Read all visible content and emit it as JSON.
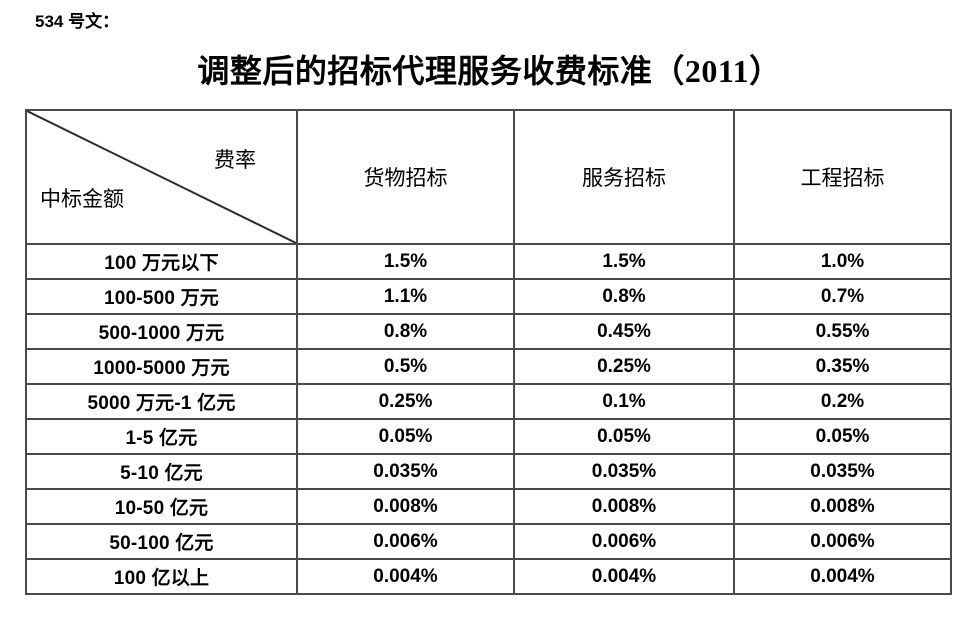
{
  "page": {
    "doc_label": "534 号文：",
    "title": "调整后的招标代理服务收费标准（2011）",
    "background_color": "#ffffff",
    "text_color": "#000000",
    "border_color": "#4a4a4a"
  },
  "table": {
    "corner": {
      "top_right_label": "费率",
      "bottom_left_label": "中标金额"
    },
    "columns": [
      "货物招标",
      "服务招标",
      "工程招标"
    ],
    "rows": [
      {
        "label": "100 万元以下",
        "values": [
          "1.5%",
          "1.5%",
          "1.0%"
        ]
      },
      {
        "label": "100-500 万元",
        "values": [
          "1.1%",
          "0.8%",
          "0.7%"
        ]
      },
      {
        "label": "500-1000 万元",
        "values": [
          "0.8%",
          "0.45%",
          "0.55%"
        ]
      },
      {
        "label": "1000-5000 万元",
        "values": [
          "0.5%",
          "0.25%",
          "0.35%"
        ]
      },
      {
        "label": "5000 万元-1 亿元",
        "values": [
          "0.25%",
          "0.1%",
          "0.2%"
        ]
      },
      {
        "label": "1-5 亿元",
        "values": [
          "0.05%",
          "0.05%",
          "0.05%"
        ]
      },
      {
        "label": "5-10 亿元",
        "values": [
          "0.035%",
          "0.035%",
          "0.035%"
        ]
      },
      {
        "label": "10-50 亿元",
        "values": [
          "0.008%",
          "0.008%",
          "0.008%"
        ]
      },
      {
        "label": "50-100 亿元",
        "values": [
          "0.006%",
          "0.006%",
          "0.006%"
        ]
      },
      {
        "label": "100 亿以上",
        "values": [
          "0.004%",
          "0.004%",
          "0.004%"
        ]
      }
    ]
  }
}
